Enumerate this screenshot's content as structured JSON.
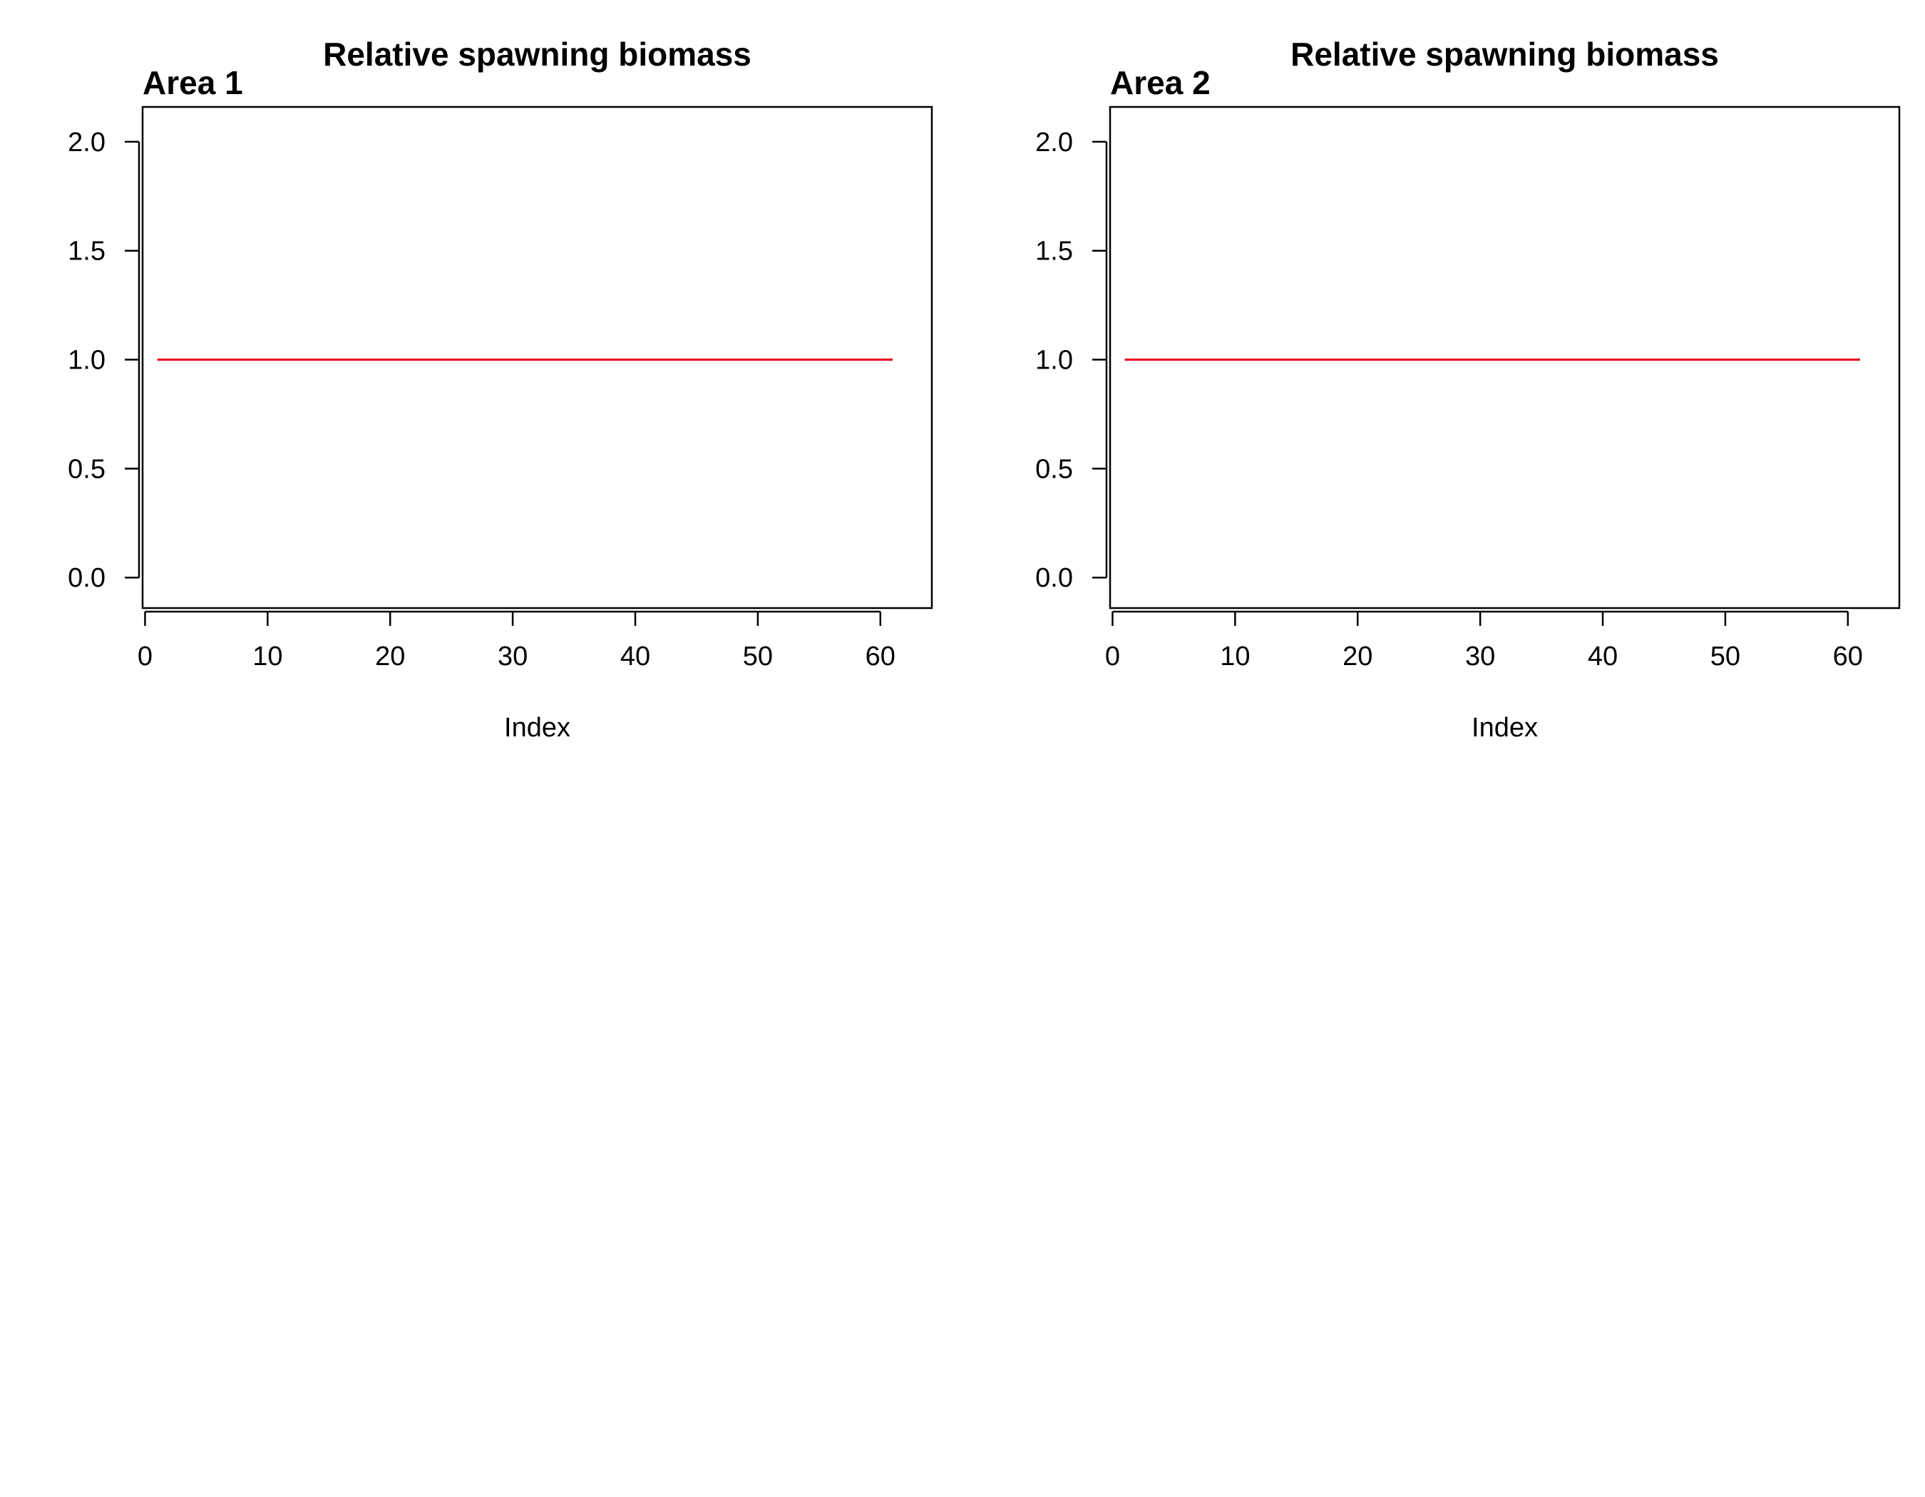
{
  "chart_data": [
    {
      "type": "line",
      "title": "Relative spawning biomass",
      "panel_label": "Area 1",
      "xlabel": "Index",
      "ylabel": "",
      "xlim": [
        -0.2,
        64.2
      ],
      "ylim": [
        -0.14,
        2.16
      ],
      "xticks": [
        0,
        10,
        20,
        30,
        40,
        50,
        60
      ],
      "yticks": [
        0.0,
        0.5,
        1.0,
        1.5,
        2.0
      ],
      "xtick_labels": [
        "0",
        "10",
        "20",
        "30",
        "40",
        "50",
        "60"
      ],
      "ytick_labels": [
        "0.0",
        "0.5",
        "1.0",
        "1.5",
        "2.0"
      ],
      "grid": false,
      "series": [
        {
          "color": "#e8001c",
          "x": [
            1,
            20,
            61
          ],
          "y": [
            1.0,
            1.0,
            1.0
          ]
        }
      ]
    },
    {
      "type": "line",
      "title": "Relative spawning biomass",
      "panel_label": "Area 2",
      "xlabel": "Index",
      "ylabel": "",
      "xlim": [
        -0.2,
        64.2
      ],
      "ylim": [
        -0.14,
        2.16
      ],
      "xticks": [
        0,
        10,
        20,
        30,
        40,
        50,
        60
      ],
      "yticks": [
        0.0,
        0.5,
        1.0,
        1.5,
        2.0
      ],
      "xtick_labels": [
        "0",
        "10",
        "20",
        "30",
        "40",
        "50",
        "60"
      ],
      "ytick_labels": [
        "0.0",
        "0.5",
        "1.0",
        "1.5",
        "2.0"
      ],
      "grid": false,
      "series": [
        {
          "color": "#e8001c",
          "x": [
            1,
            20,
            61
          ],
          "y": [
            1.0,
            1.0,
            1.0
          ]
        }
      ]
    }
  ]
}
